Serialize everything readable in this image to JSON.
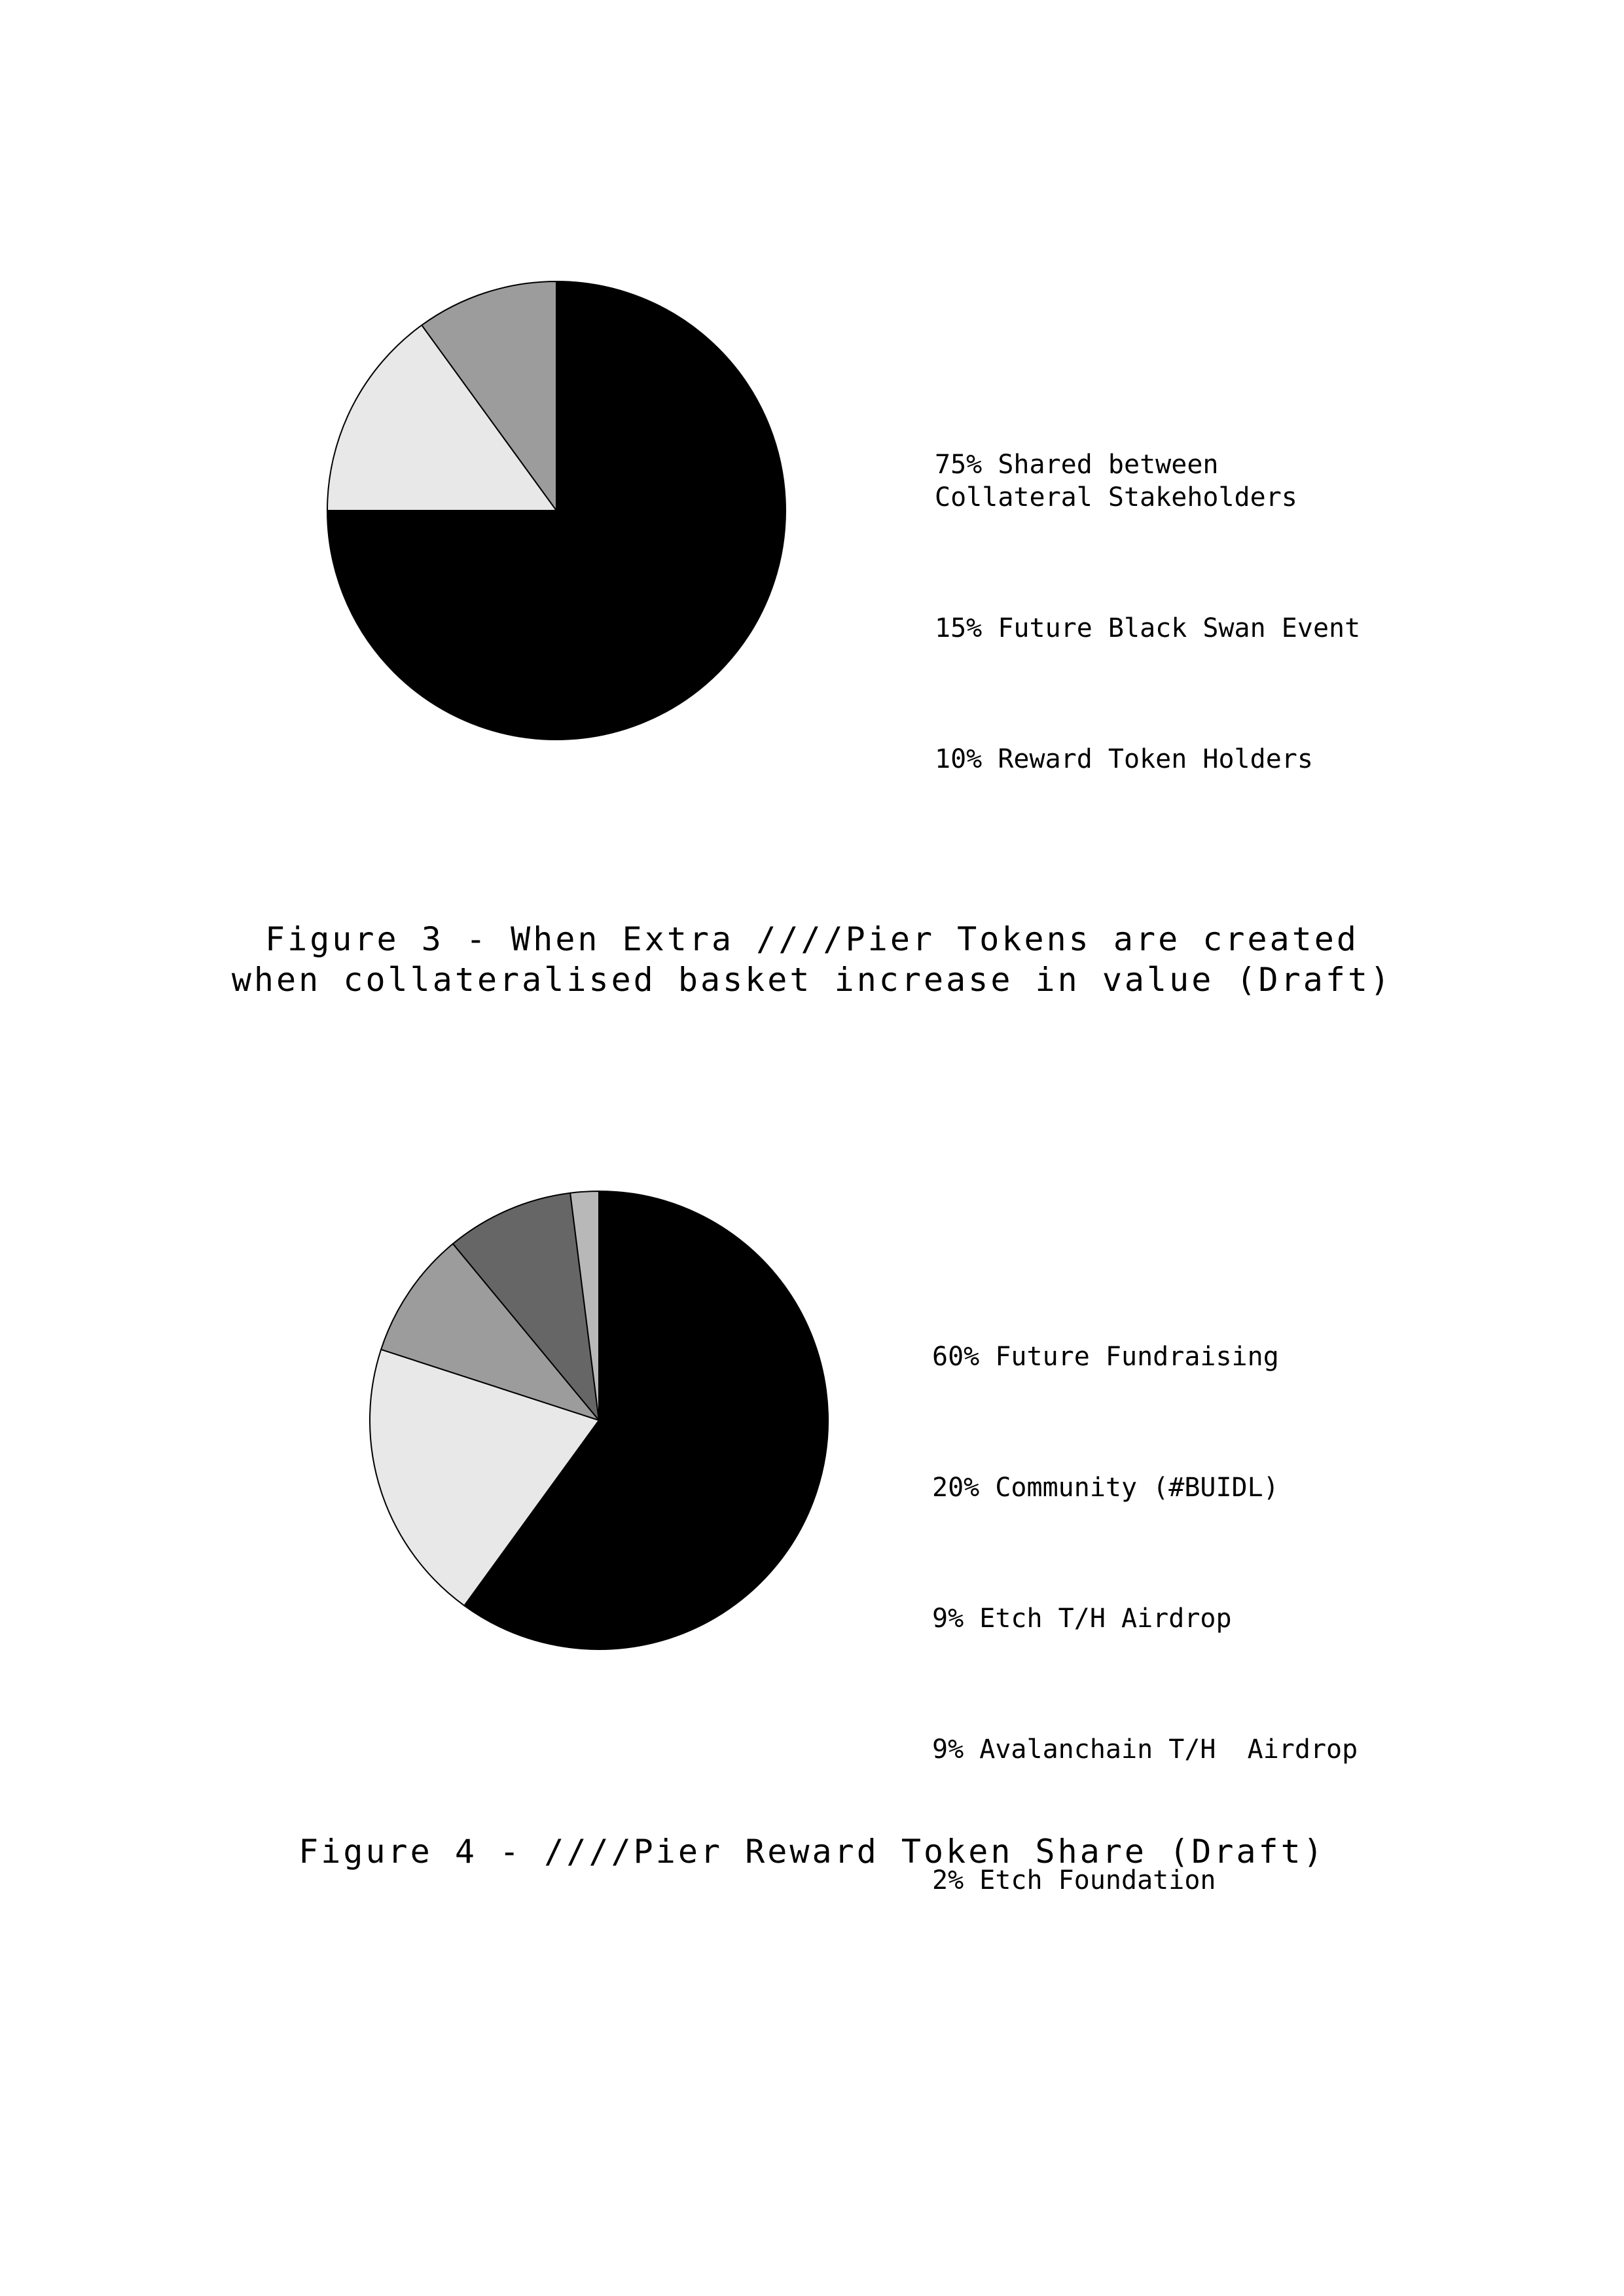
{
  "chart_data": [
    {
      "type": "pie",
      "title": "",
      "slices": [
        {
          "label": "Shared between Collateral Stakeholders",
          "value": 75,
          "color": "#000000"
        },
        {
          "label": "Future Black Swan Event",
          "value": 15,
          "color": "#e8e8e8"
        },
        {
          "label": "Reward Token Holders",
          "value": 10,
          "color": "#9c9c9c"
        }
      ],
      "legend": [
        "75% Shared between\nCollateral Stakeholders",
        "15% Future Black Swan Event",
        "10% Reward Token Holders"
      ],
      "legend_position": "right",
      "caption": "Figure 3 - When Extra ////Pier Tokens are created\nwhen collateralised basket increase in value (Draft)"
    },
    {
      "type": "pie",
      "title": "",
      "slices": [
        {
          "label": "Future Fundraising",
          "value": 60,
          "color": "#000000"
        },
        {
          "label": "Community (#BUIDL)",
          "value": 20,
          "color": "#e8e8e8"
        },
        {
          "label": "Etch T/H Airdrop",
          "value": 9,
          "color": "#9c9c9c"
        },
        {
          "label": "Avalanchain T/H Airdrop",
          "value": 9,
          "color": "#666666"
        },
        {
          "label": "Etch Foundation",
          "value": 2,
          "color": "#b8b8b8"
        }
      ],
      "legend": [
        "60% Future Fundraising",
        "20% Community (#BUIDL)",
        "9% Etch T/H Airdrop",
        "9% Avalanchain T/H  Airdrop",
        "2% Etch Foundation"
      ],
      "legend_position": "right",
      "caption": "Figure 4 - ////Pier Reward Token Share (Draft)"
    }
  ]
}
